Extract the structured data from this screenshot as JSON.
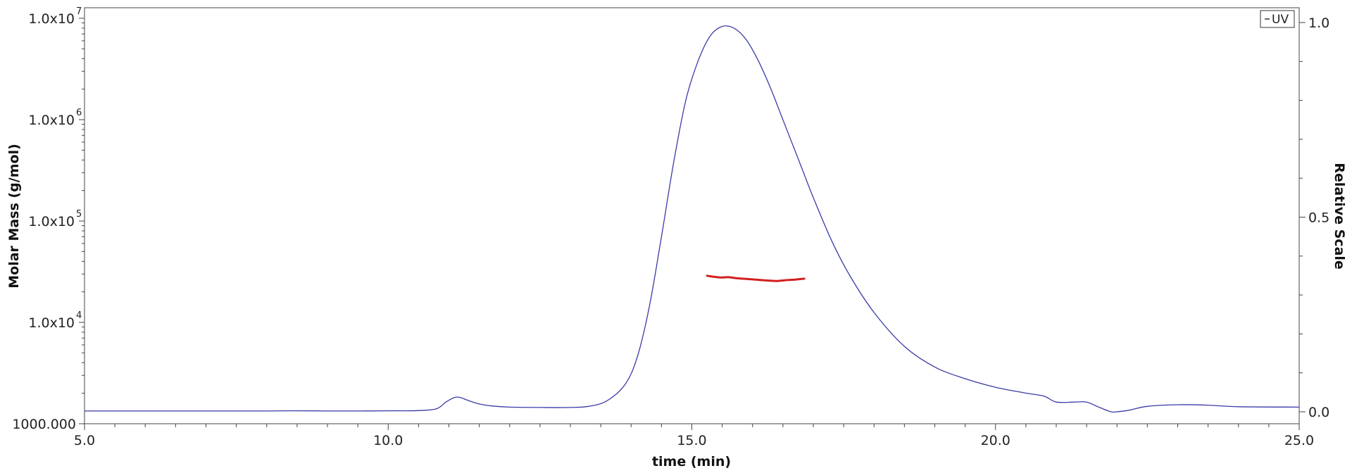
{
  "chart_data": {
    "type": "line",
    "xlabel": "time (min)",
    "ylabel_left": "Molar Mass (g/mol)",
    "ylabel_right": "Relative Scale",
    "xlim": [
      5.0,
      25.0
    ],
    "ylim_left": [
      1000,
      10000000
    ],
    "left_scale": "log",
    "ylim_right": [
      0.0,
      1.0
    ],
    "x_ticks": [
      5.0,
      10.0,
      15.0,
      20.0,
      25.0
    ],
    "x_tick_labels": [
      "5.0",
      "10.0",
      "15.0",
      "20.0",
      "25.0"
    ],
    "x_minor_step": 0.5,
    "left_ticks": [
      {
        "value": 1000,
        "label": "1000.000",
        "sup": ""
      },
      {
        "value": 10000,
        "label": "1.0x10",
        "sup": "4"
      },
      {
        "value": 100000,
        "label": "1.0x10",
        "sup": "5"
      },
      {
        "value": 1000000,
        "label": "1.0x10",
        "sup": "6"
      },
      {
        "value": 10000000,
        "label": "1.0x10",
        "sup": "7"
      }
    ],
    "right_ticks": [
      {
        "value": 0.0,
        "label": "0.0"
      },
      {
        "value": 0.5,
        "label": "0.5"
      },
      {
        "value": 1.0,
        "label": "1.0"
      }
    ],
    "grid": false,
    "legend": {
      "position": "top-right",
      "entries": [
        "UV"
      ]
    },
    "series": [
      {
        "name": "UV",
        "axis": "right",
        "color": "#3a3aa8",
        "x": [
          5.0,
          6.0,
          7.0,
          8.0,
          8.5,
          9.0,
          9.5,
          10.0,
          10.5,
          10.8,
          10.95,
          11.1,
          11.2,
          11.3,
          11.5,
          11.7,
          12.0,
          12.5,
          13.0,
          13.3,
          13.6,
          13.9,
          14.1,
          14.3,
          14.5,
          14.7,
          14.9,
          15.1,
          15.3,
          15.5,
          15.7,
          15.9,
          16.1,
          16.3,
          16.5,
          16.8,
          17.0,
          17.3,
          17.6,
          18.0,
          18.5,
          19.0,
          19.5,
          20.0,
          20.5,
          20.8,
          21.0,
          21.3,
          21.5,
          21.7,
          21.9,
          22.0,
          22.2,
          22.5,
          23.0,
          23.5,
          24.0,
          25.0
        ],
        "y": [
          0.002,
          0.002,
          0.002,
          0.002,
          0.0025,
          0.002,
          0.002,
          0.0025,
          0.003,
          0.008,
          0.025,
          0.037,
          0.036,
          0.03,
          0.02,
          0.015,
          0.012,
          0.011,
          0.011,
          0.014,
          0.028,
          0.07,
          0.14,
          0.27,
          0.45,
          0.64,
          0.8,
          0.9,
          0.965,
          0.99,
          0.985,
          0.955,
          0.9,
          0.83,
          0.75,
          0.63,
          0.55,
          0.44,
          0.35,
          0.255,
          0.168,
          0.115,
          0.085,
          0.063,
          0.048,
          0.04,
          0.025,
          0.025,
          0.025,
          0.012,
          0.0,
          0.0,
          0.004,
          0.014,
          0.018,
          0.017,
          0.013,
          0.012
        ]
      },
      {
        "name": "",
        "axis": "left",
        "color": "#d21f1f",
        "x": [
          15.25,
          15.4,
          15.5,
          15.6,
          15.75,
          15.9,
          16.05,
          16.2,
          16.4,
          16.55,
          16.7,
          16.85
        ],
        "y": [
          28800,
          28000,
          27700,
          27900,
          27200,
          26800,
          26400,
          26000,
          25600,
          26100,
          26400,
          27000
        ]
      }
    ]
  }
}
